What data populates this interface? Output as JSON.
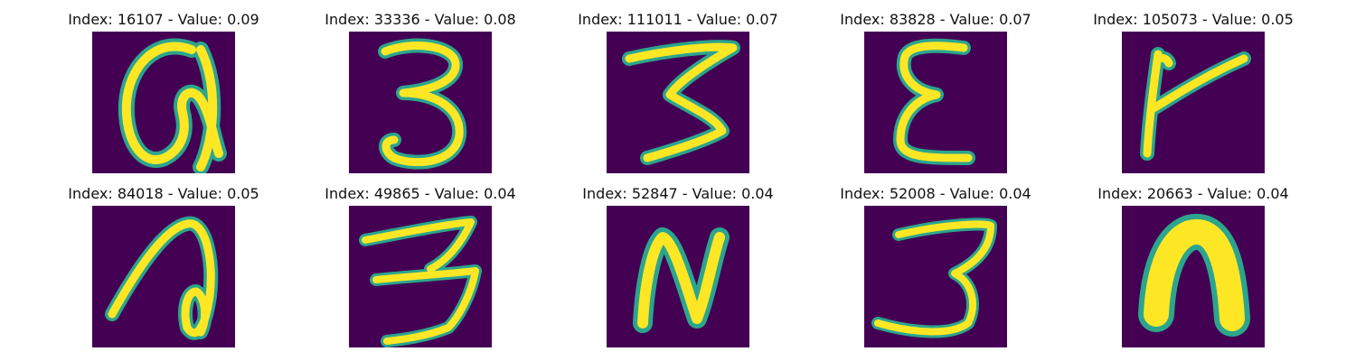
{
  "panels": [
    {
      "title": "Index: 16107 - Value: 0.09",
      "glyph": "a-like"
    },
    {
      "title": "Index: 33336 - Value: 0.08",
      "glyph": "3"
    },
    {
      "title": "Index: 111011 - Value: 0.07",
      "glyph": "3-wide"
    },
    {
      "title": "Index: 83828 - Value: 0.07",
      "glyph": "epsilon"
    },
    {
      "title": "Index: 105073 - Value: 0.05",
      "glyph": "k-like"
    },
    {
      "title": "Index: 84018 - Value: 0.05",
      "glyph": "a-tall"
    },
    {
      "title": "Index: 49865 - Value: 0.04",
      "glyph": "3-wide"
    },
    {
      "title": "Index: 52847 - Value: 0.04",
      "glyph": "N"
    },
    {
      "title": "Index: 52008 - Value: 0.04",
      "glyph": "3"
    },
    {
      "title": "Index: 20663 - Value: 0.04",
      "glyph": "n-blob"
    }
  ],
  "colors": {
    "background": "#440154",
    "mid": "#2ca58d",
    "high": "#fde725"
  }
}
